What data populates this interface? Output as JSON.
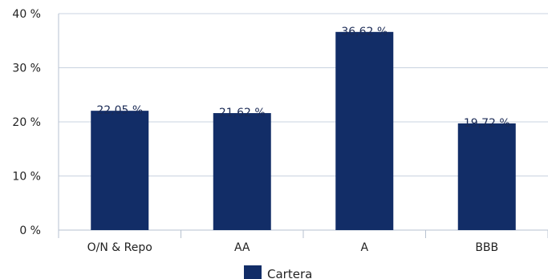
{
  "chart_data": {
    "type": "bar",
    "title": "",
    "xlabel": "",
    "ylabel": "",
    "categories": [
      "O/N & Repo",
      "AA",
      "A",
      "BBB"
    ],
    "series": [
      {
        "name": "Cartera",
        "values": [
          22.05,
          21.62,
          36.62,
          19.72
        ],
        "data_labels": [
          "22,05 %",
          "21,62 %",
          "36,62 %",
          "19,72 %"
        ],
        "color": "#122d67"
      }
    ],
    "ylim": [
      0,
      40
    ],
    "yticks": [
      0,
      10,
      20,
      30,
      40
    ],
    "ytick_labels": [
      "0 %",
      "10 %",
      "20 %",
      "30 %",
      "40 %"
    ],
    "grid": true,
    "legend": "bottom-center"
  },
  "colors": {
    "bar": "#122d67",
    "grid": "#c9d3e0",
    "axis": "#b7c2d0"
  }
}
